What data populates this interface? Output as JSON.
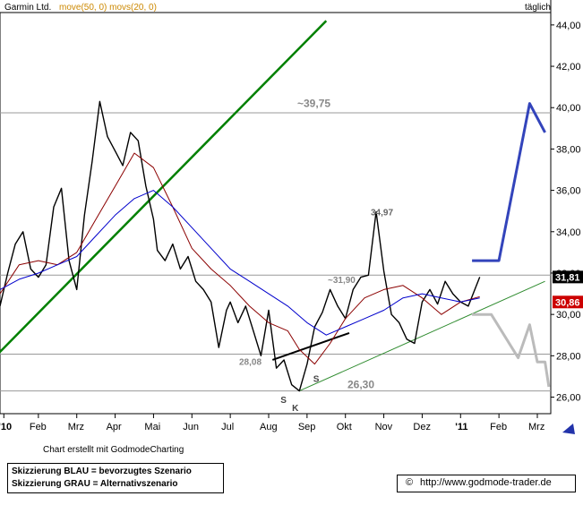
{
  "header": {
    "instrument": "Garmin Ltd.",
    "indicators": "move(50, 0)  movs(20, 0)",
    "interval": "täglich"
  },
  "footer": {
    "credit": "Chart erstellt mit GodmodeCharting",
    "legend_blue": "Skizzierung BLAU = bevorzugtes Szenario",
    "legend_gray": "Skizzierung GRAU = Alternativszenario",
    "copyright_symbol": "©",
    "url": "http://www.godmode-trader.de"
  },
  "colors": {
    "price": "#000000",
    "sma20": "#8b0000",
    "sma50": "#0000cc",
    "long_trend": "#008000",
    "support_trend": "#2e8b2e",
    "blue_scenario": "#3344bb",
    "gray_scenario": "#bbbbbb",
    "last_price_bg": "#000000",
    "sma_label_bg": "#cc0000"
  },
  "chart_data": {
    "type": "line",
    "title": "Garmin Ltd.",
    "interval": "täglich",
    "ylim": [
      25.2,
      44.6
    ],
    "xlim": [
      0,
      14
    ],
    "y_ticks": [
      "26,00",
      "28,00",
      "30,00",
      "32,00",
      "34,00",
      "36,00",
      "38,00",
      "40,00",
      "42,00",
      "44,00"
    ],
    "y_tick_values": [
      26,
      28,
      30,
      32,
      34,
      36,
      38,
      40,
      42,
      44
    ],
    "x_ticks": [
      "'10",
      "Feb",
      "Mrz",
      "Apr",
      "Mai",
      "Jun",
      "Jul",
      "Aug",
      "Sep",
      "Okt",
      "Nov",
      "Dez",
      "'11",
      "Feb",
      "Mrz"
    ],
    "x_tick_values": [
      0.1,
      1.0,
      2.0,
      3.0,
      4.0,
      5.0,
      6.0,
      7.0,
      8.0,
      9.0,
      10.0,
      11.0,
      12.0,
      13.0,
      14.0
    ],
    "grid": false,
    "series": [
      {
        "role": "price",
        "x": [
          0.0,
          0.2,
          0.4,
          0.6,
          0.8,
          1.0,
          1.2,
          1.4,
          1.6,
          1.8,
          2.0,
          2.2,
          2.4,
          2.6,
          2.8,
          3.0,
          3.2,
          3.4,
          3.6,
          3.8,
          4.0,
          4.1,
          4.3,
          4.5,
          4.7,
          4.9,
          5.1,
          5.3,
          5.5,
          5.7,
          5.9,
          6.0,
          6.2,
          6.4,
          6.6,
          6.8,
          7.0,
          7.2,
          7.4,
          7.6,
          7.8,
          8.0,
          8.2,
          8.4,
          8.6,
          8.8,
          9.0,
          9.2,
          9.4,
          9.6,
          9.8,
          10.0,
          10.2,
          10.4,
          10.6,
          10.8,
          11.0,
          11.2,
          11.4,
          11.6,
          11.8,
          12.0,
          12.2,
          12.5
        ],
        "values": [
          30.4,
          32.0,
          33.4,
          34.0,
          32.2,
          31.8,
          32.4,
          35.2,
          36.1,
          32.6,
          31.2,
          34.8,
          37.4,
          40.3,
          38.6,
          37.9,
          37.2,
          38.8,
          38.4,
          36.2,
          34.6,
          33.1,
          32.6,
          33.4,
          32.2,
          32.8,
          31.6,
          31.2,
          30.6,
          28.4,
          30.2,
          30.6,
          29.6,
          30.4,
          29.2,
          28.0,
          30.2,
          27.4,
          27.8,
          26.6,
          26.3,
          27.6,
          29.4,
          30.1,
          31.2,
          30.4,
          29.8,
          31.2,
          31.8,
          31.9,
          34.97,
          32.1,
          30.0,
          29.6,
          28.8,
          28.6,
          30.6,
          31.2,
          30.5,
          31.6,
          31.0,
          30.6,
          30.4,
          31.81
        ]
      },
      {
        "role": "sma20",
        "x": [
          0.0,
          0.5,
          1.0,
          1.5,
          2.0,
          2.5,
          3.0,
          3.5,
          4.0,
          4.5,
          5.0,
          5.5,
          6.0,
          6.5,
          7.0,
          7.5,
          7.8,
          8.2,
          8.6,
          9.0,
          9.5,
          10.0,
          10.5,
          11.0,
          11.5,
          12.0,
          12.5
        ],
        "values": [
          31.0,
          32.4,
          32.6,
          32.4,
          33.0,
          34.6,
          36.2,
          37.8,
          37.1,
          35.2,
          33.2,
          32.2,
          31.4,
          30.4,
          29.6,
          29.2,
          28.3,
          27.6,
          28.6,
          29.8,
          30.8,
          31.2,
          31.4,
          30.8,
          30.0,
          30.6,
          30.86
        ]
      },
      {
        "role": "sma50",
        "x": [
          0.0,
          0.5,
          1.0,
          1.5,
          2.0,
          2.5,
          3.0,
          3.5,
          4.0,
          4.5,
          5.0,
          5.5,
          6.0,
          6.5,
          7.0,
          7.5,
          8.0,
          8.5,
          9.0,
          9.5,
          10.0,
          10.5,
          11.0,
          11.5,
          12.0,
          12.5
        ],
        "values": [
          31.2,
          31.7,
          32.0,
          32.4,
          32.8,
          33.8,
          34.8,
          35.6,
          36.0,
          35.2,
          34.2,
          33.2,
          32.2,
          31.6,
          31.0,
          30.4,
          29.6,
          29.0,
          29.4,
          29.8,
          30.2,
          30.8,
          31.0,
          30.8,
          30.6,
          30.8
        ]
      }
    ],
    "horizontal_lines": [
      {
        "y": 39.75,
        "label": "~39,75"
      },
      {
        "y": 31.9,
        "label": "~31,90"
      },
      {
        "y": 28.08,
        "label": "28,08"
      },
      {
        "y": 26.3,
        "label": "26,30"
      }
    ],
    "annotations": [
      {
        "text": "34,97",
        "x": 9.8,
        "y": 34.97
      },
      {
        "text": "S",
        "x": 7.45,
        "y": 25.9
      },
      {
        "text": "K",
        "x": 7.75,
        "y": 25.5
      },
      {
        "text": "S",
        "x": 8.3,
        "y": 26.9
      }
    ],
    "trendlines": [
      {
        "role": "long_trend",
        "x": [
          -0.1,
          8.5
        ],
        "y": [
          28.0,
          44.2
        ]
      },
      {
        "role": "support_trend",
        "x": [
          7.8,
          14.2
        ],
        "y": [
          26.3,
          31.6
        ]
      },
      {
        "role": "neckline",
        "x": [
          7.1,
          9.1
        ],
        "y": [
          27.8,
          29.1
        ]
      }
    ],
    "scenario_blue": {
      "x": [
        12.3,
        13.0,
        13.8,
        14.2
      ],
      "y": [
        32.6,
        32.6,
        40.2,
        38.8
      ]
    },
    "scenario_gray": {
      "x": [
        12.3,
        12.8,
        13.5,
        13.8,
        14.0,
        14.2,
        14.3
      ],
      "y": [
        30.0,
        30.0,
        27.9,
        29.5,
        27.7,
        27.7,
        26.5
      ]
    },
    "last_price": {
      "value": 31.81,
      "label": "31,81"
    },
    "sma_label": {
      "value": 30.86,
      "label": "30,86"
    }
  }
}
